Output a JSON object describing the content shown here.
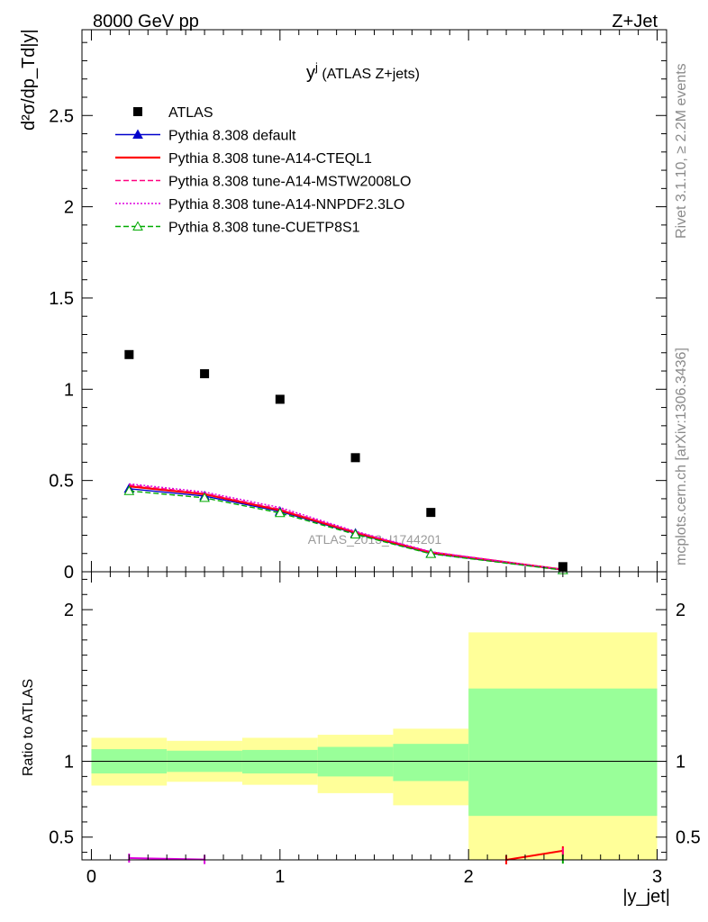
{
  "header": {
    "left": "8000 GeV pp",
    "right": "Z+Jet"
  },
  "side_labels": {
    "rivet": "Rivet 3.1.10, ≥ 2.2M events",
    "mcplots": "mcplots.cern.ch [arXiv:1306.3436]"
  },
  "chart_data": {
    "type": "scatter",
    "title": "y^j (ATLAS Z+jets)",
    "title_main": "y",
    "title_sup": "j",
    "title_rest": " (ATLAS Z+jets)",
    "analysis_label": "ATLAS_2013_I1744201",
    "xlabel": "|y_jet|",
    "ylabel": "d²σ/dp_Td|y|",
    "ratio_ylabel": "Ratio to ATLAS",
    "xlim": [
      -0.05,
      3.05
    ],
    "ylim": [
      0,
      2.97
    ],
    "ratio_ylim": [
      0.35,
      2.25
    ],
    "xticks": [
      "0",
      "1",
      "2",
      "3"
    ],
    "yticks": [
      "0",
      "0.5",
      "1",
      "1.5",
      "2",
      "2.5"
    ],
    "ratio_yticks": [
      "0.5",
      "1",
      "2"
    ],
    "bin_edges": [
      0,
      0.4,
      0.8,
      1.2,
      1.6,
      2.0,
      3.0
    ],
    "x": [
      0.2,
      0.6,
      1.0,
      1.4,
      1.8,
      2.5
    ],
    "legend_position": "top-left",
    "series": [
      {
        "name": "ATLAS",
        "color": "#000000",
        "style": "data-square",
        "values": [
          1.19,
          1.085,
          0.945,
          0.625,
          0.325,
          0.028
        ]
      },
      {
        "name": "Pythia 8.308 default",
        "color": "#0000cc",
        "style": "solid-triangle",
        "values": [
          0.455,
          0.415,
          0.33,
          0.21,
          0.1,
          0.01
        ]
      },
      {
        "name": "Pythia 8.308 tune-A14-CTEQL1",
        "color": "#ff0000",
        "style": "solid-thick",
        "values": [
          0.468,
          0.425,
          0.337,
          0.215,
          0.106,
          0.012
        ]
      },
      {
        "name": "Pythia 8.308 tune-A14-MSTW2008LO",
        "color": "#ff0080",
        "style": "dashed",
        "values": [
          0.475,
          0.43,
          0.343,
          0.218,
          0.108,
          0.012
        ]
      },
      {
        "name": "Pythia 8.308 tune-A14-NNPDF2.3LO",
        "color": "#dd00dd",
        "style": "dotted",
        "values": [
          0.482,
          0.437,
          0.352,
          0.222,
          0.11,
          0.012
        ]
      },
      {
        "name": "Pythia 8.308 tune-CUETP8S1",
        "color": "#00aa00",
        "style": "dashed-open-triangle",
        "values": [
          0.443,
          0.405,
          0.322,
          0.205,
          0.098,
          0.009
        ]
      }
    ],
    "ratio_bands": {
      "inner": [
        [
          0.92,
          1.08
        ],
        [
          0.93,
          1.07
        ],
        [
          0.92,
          1.075
        ],
        [
          0.9,
          1.095
        ],
        [
          0.87,
          1.115
        ],
        [
          0.64,
          1.48
        ]
      ],
      "outer": [
        [
          0.84,
          1.155
        ],
        [
          0.865,
          1.135
        ],
        [
          0.845,
          1.155
        ],
        [
          0.79,
          1.175
        ],
        [
          0.71,
          1.215
        ],
        [
          0.33,
          1.85
        ]
      ]
    },
    "ratio_visible": [
      {
        "series": "Pythia 8.308 tune-A14-CTEQL1",
        "x": [
          2.2,
          2.5
        ],
        "values": [
          0.33,
          0.41
        ],
        "color": "#ff0000"
      },
      {
        "series": "Pythia 8.308 tune-A14-MSTW2008LO",
        "x": [
          2.5
        ],
        "values": [
          0.4
        ],
        "color": "#ff0080"
      },
      {
        "series": "Pythia 8.308 tune-CUETP8S1",
        "x": [
          2.5
        ],
        "values": [
          0.355
        ],
        "color": "#00aa00"
      },
      {
        "series": "Pythia 8.308 tune-A14-NNPDF2.3LO",
        "x": [
          0.2,
          0.6
        ],
        "values": [
          0.362,
          0.352
        ],
        "color": "#dd00dd"
      }
    ],
    "colors": {
      "band_inner": "#99ff99",
      "band_outer": "#ffff99"
    }
  }
}
